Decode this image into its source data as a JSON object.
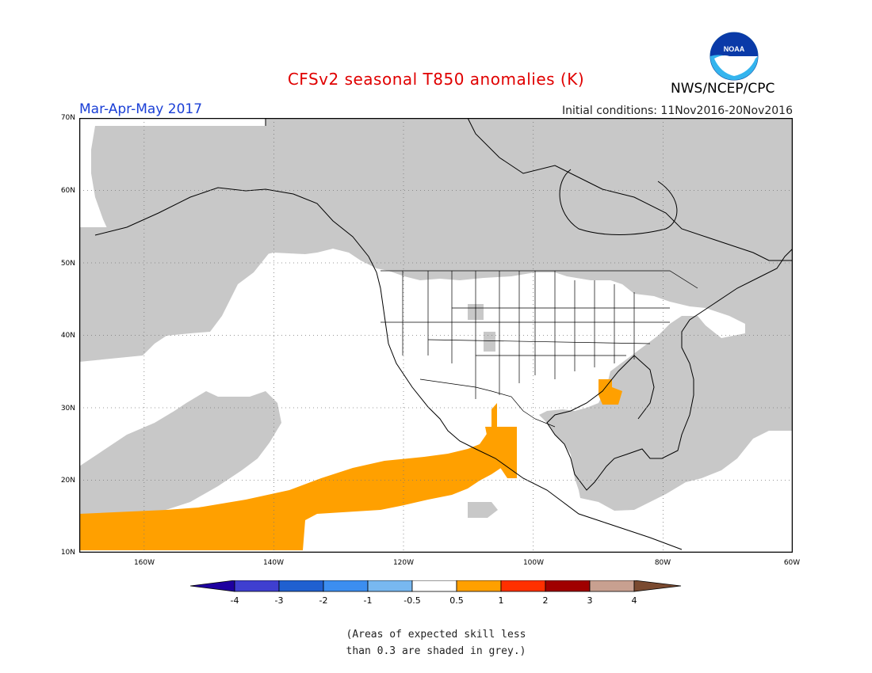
{
  "header": {
    "title": "CFSv2 seasonal T850 anomalies (K)",
    "season": "Mar-Apr-May 2017",
    "initial_conditions": "Initial conditions: 11Nov2016-20Nov2016",
    "agency": "NWS/NCEP/CPC",
    "logo_text": "NOAA"
  },
  "map": {
    "lat_labels": [
      "70N",
      "60N",
      "50N",
      "40N",
      "30N",
      "20N",
      "10N"
    ],
    "lon_labels": [
      "160W",
      "140W",
      "120W",
      "100W",
      "80W",
      "60W"
    ],
    "domain": {
      "lon": [
        -170,
        -60
      ],
      "lat": [
        10,
        70
      ]
    },
    "colors": {
      "grey_skill": "#c8c8c8",
      "anomaly_0_5_to_1": "#ffa000"
    }
  },
  "colorbar": {
    "labels": [
      "-4",
      "-3",
      "-2",
      "-1",
      "-0.5",
      "0.5",
      "1",
      "2",
      "3",
      "4"
    ],
    "colors": [
      "#1e00a0",
      "#3f3fd0",
      "#2060d0",
      "#3c8ef0",
      "#78b8f0",
      "#ffffff",
      "#ffa000",
      "#ff3000",
      "#a00000",
      "#c8a090",
      "#7a4a30"
    ]
  },
  "footnote": {
    "line1": "(Areas of expected skill less",
    "line2": "than 0.3 are shaded in grey.)"
  }
}
